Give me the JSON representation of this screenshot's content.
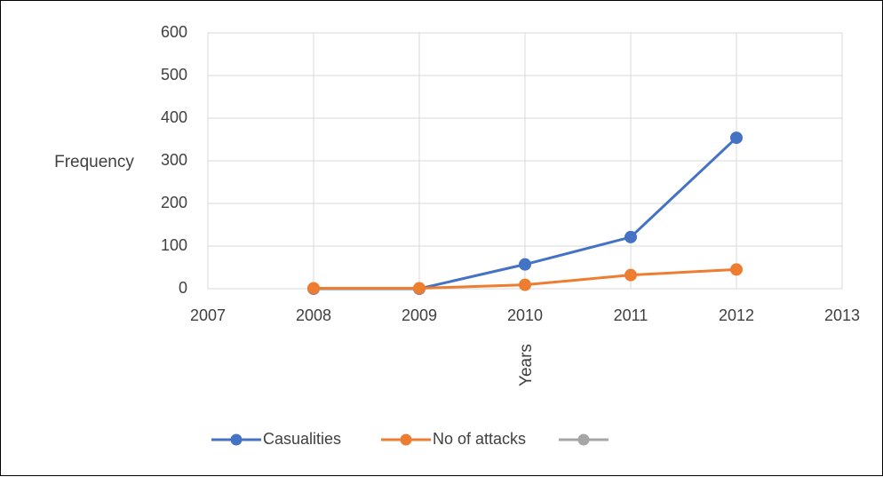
{
  "chart_data": {
    "type": "line",
    "title": "",
    "xlabel": "Years",
    "ylabel": "Frequency",
    "x_ticks": [
      "2007",
      "2008",
      "2009",
      "2010",
      "2011",
      "2012",
      "2013"
    ],
    "y_ticks": [
      "0",
      "100",
      "200",
      "300",
      "400",
      "500",
      "600"
    ],
    "xlim": [
      2007,
      2013
    ],
    "ylim": [
      0,
      600
    ],
    "grid": true,
    "legend_position": "bottom",
    "series": [
      {
        "name": "Casualities",
        "color": "#4472C4",
        "points": [
          {
            "x": 2008,
            "y": 0
          },
          {
            "x": 2009,
            "y": 0
          },
          {
            "x": 2010,
            "y": 57
          },
          {
            "x": 2011,
            "y": 121
          },
          {
            "x": 2012,
            "y": 354
          }
        ]
      },
      {
        "name": "No of attacks",
        "color": "#ED7D31",
        "points": [
          {
            "x": 2008,
            "y": 1
          },
          {
            "x": 2009,
            "y": 1
          },
          {
            "x": 2010,
            "y": 9
          },
          {
            "x": 2011,
            "y": 32
          },
          {
            "x": 2012,
            "y": 45
          }
        ]
      },
      {
        "name": "",
        "color": "#A5A5A5",
        "points": []
      }
    ]
  }
}
